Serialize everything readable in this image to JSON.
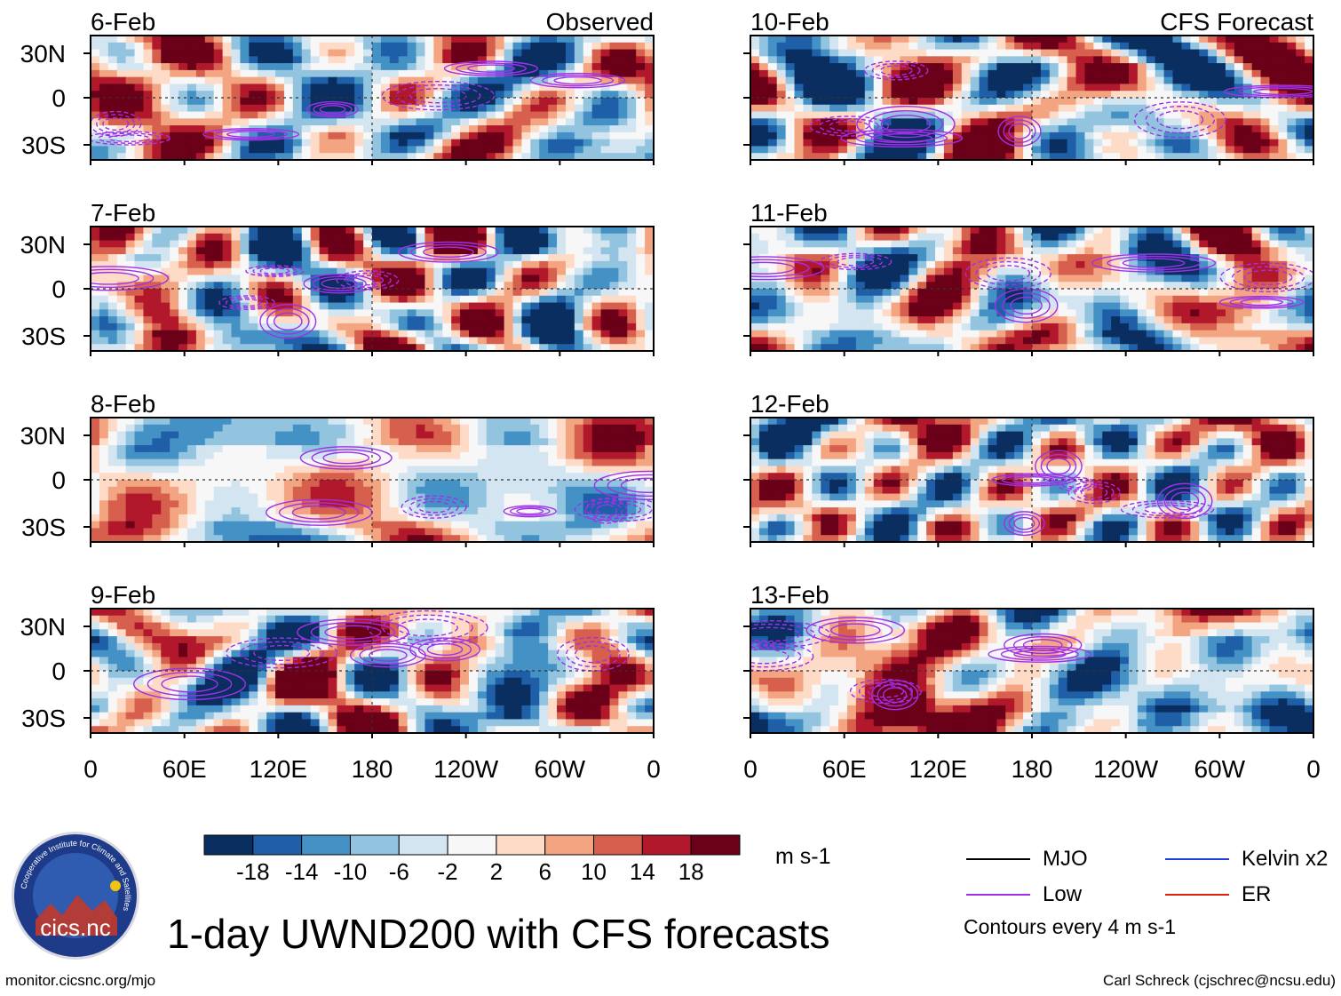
{
  "figure": {
    "title": "1-day UWND200 with CFS forecasts",
    "source_url": "monitor.cicsnc.org/mjo",
    "credit": "Carl Schreck (cjschrec@ncsu.edu)",
    "logo_text": "cics.nc",
    "logo_ring_text": "Cooperative Institute for Climate and Satellites"
  },
  "columns": {
    "left_label": "Observed",
    "right_label": "CFS Forecast"
  },
  "legend": {
    "items": [
      {
        "label": "MJO",
        "color": "#000000"
      },
      {
        "label": "Kelvin x2",
        "color": "#1f3fd8"
      },
      {
        "label": "Low",
        "color": "#a030e8"
      },
      {
        "label": "ER",
        "color": "#e02010"
      }
    ],
    "contour_note": "Contours every 4 m s-1"
  },
  "colorbar": {
    "units": "m s-1",
    "ticks": [
      "-18",
      "-14",
      "-10",
      "-6",
      "-2",
      "2",
      "6",
      "10",
      "14",
      "18"
    ],
    "colors": [
      "#0b2e61",
      "#1f5fa8",
      "#4492c5",
      "#92c4df",
      "#d2e5f0",
      "#f7f7f7",
      "#fddbc7",
      "#f3a582",
      "#d6604d",
      "#b2182b",
      "#6b0019"
    ]
  },
  "chart_data": {
    "type": "heatmap",
    "variable": "UWND200 anomaly (1-day)",
    "units": "m s-1",
    "x_tick_labels": [
      "0",
      "60E",
      "120E",
      "180",
      "120W",
      "60W",
      "0"
    ],
    "x_range_deg": [
      0,
      360
    ],
    "y_tick_labels": [
      "30N",
      "0",
      "30S"
    ],
    "y_range_deg": [
      -40,
      40
    ],
    "panels": [
      {
        "date": "6-Feb",
        "source": "Observed"
      },
      {
        "date": "7-Feb",
        "source": "Observed"
      },
      {
        "date": "8-Feb",
        "source": "Observed"
      },
      {
        "date": "9-Feb",
        "source": "Observed"
      },
      {
        "date": "10-Feb",
        "source": "CFS Forecast"
      },
      {
        "date": "11-Feb",
        "source": "CFS Forecast"
      },
      {
        "date": "12-Feb",
        "source": "CFS Forecast"
      },
      {
        "date": "13-Feb",
        "source": "CFS Forecast"
      }
    ],
    "contour_interval": 4
  }
}
